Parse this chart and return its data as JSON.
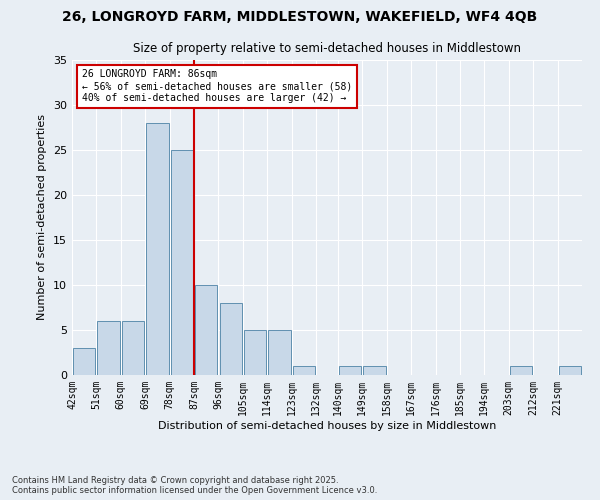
{
  "title_line1": "26, LONGROYD FARM, MIDDLESTOWN, WAKEFIELD, WF4 4QB",
  "title_line2": "Size of property relative to semi-detached houses in Middlestown",
  "xlabel": "Distribution of semi-detached houses by size in Middlestown",
  "ylabel": "Number of semi-detached properties",
  "bin_labels": [
    "42sqm",
    "51sqm",
    "60sqm",
    "69sqm",
    "78sqm",
    "87sqm",
    "96sqm",
    "105sqm",
    "114sqm",
    "123sqm",
    "132sqm",
    "140sqm",
    "149sqm",
    "158sqm",
    "167sqm",
    "176sqm",
    "185sqm",
    "194sqm",
    "203sqm",
    "212sqm",
    "221sqm"
  ],
  "bin_edges": [
    42,
    51,
    60,
    69,
    78,
    87,
    96,
    105,
    114,
    123,
    132,
    140,
    149,
    158,
    167,
    176,
    185,
    194,
    203,
    212,
    221,
    230
  ],
  "counts": [
    3,
    6,
    6,
    28,
    25,
    10,
    8,
    5,
    5,
    1,
    0,
    1,
    1,
    0,
    0,
    0,
    0,
    0,
    1,
    0,
    1
  ],
  "bar_color": "#c8d8e8",
  "bar_edge_color": "#6090b0",
  "vline_x": 87,
  "vline_color": "#cc0000",
  "annotation_title": "26 LONGROYD FARM: 86sqm",
  "annotation_line2": "← 56% of semi-detached houses are smaller (58)",
  "annotation_line3": "40% of semi-detached houses are larger (42) →",
  "annotation_box_color": "#ffffff",
  "annotation_box_edge": "#cc0000",
  "bg_color": "#e8eef4",
  "footer_line1": "Contains HM Land Registry data © Crown copyright and database right 2025.",
  "footer_line2": "Contains public sector information licensed under the Open Government Licence v3.0.",
  "ylim": [
    0,
    35
  ],
  "yticks": [
    0,
    5,
    10,
    15,
    20,
    25,
    30,
    35
  ]
}
